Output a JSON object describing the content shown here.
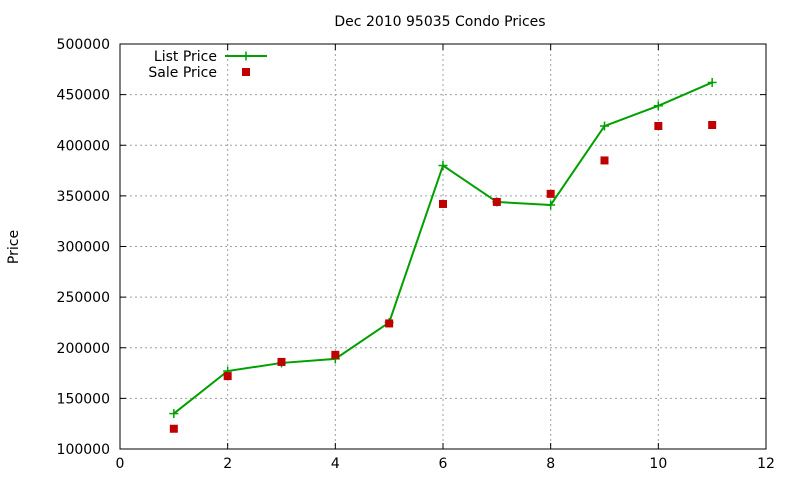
{
  "chart_data": {
    "type": "line",
    "title": "Dec 2010 95035 Condo Prices",
    "xlabel": "",
    "ylabel": "Price",
    "xlim": [
      0,
      12
    ],
    "ylim": [
      100000,
      500000
    ],
    "xticks": [
      0,
      2,
      4,
      6,
      8,
      10,
      12
    ],
    "yticks": [
      100000,
      150000,
      200000,
      250000,
      300000,
      350000,
      400000,
      450000,
      500000
    ],
    "grid": true,
    "legend_position": "top-left",
    "series": [
      {
        "name": "List Price",
        "style": "line+cross",
        "color": "#00a000",
        "x": [
          1,
          2,
          3,
          4,
          5,
          6,
          7,
          8,
          9,
          10,
          11
        ],
        "y": [
          135000,
          177000,
          185000,
          189000,
          225000,
          380000,
          344000,
          341000,
          419000,
          439000,
          462000
        ]
      },
      {
        "name": "Sale Price",
        "style": "square",
        "color": "#c00000",
        "x": [
          1,
          2,
          3,
          4,
          5,
          6,
          7,
          8,
          9,
          10,
          11
        ],
        "y": [
          120000,
          172000,
          186000,
          193000,
          224000,
          342000,
          344000,
          352000,
          385000,
          419000,
          420000
        ]
      }
    ]
  }
}
